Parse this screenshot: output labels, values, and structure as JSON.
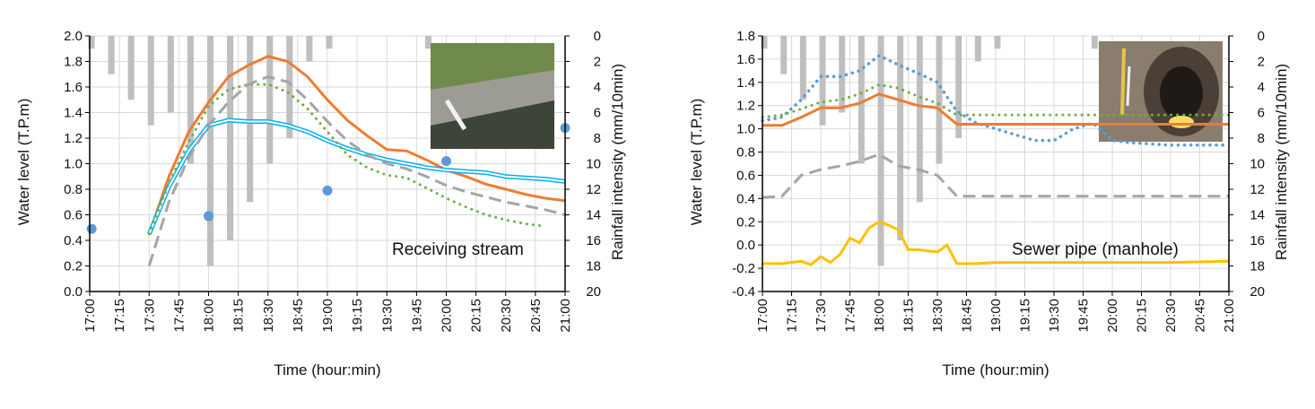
{
  "chart_data": [
    {
      "type": "line",
      "title": "",
      "annotation": "Receiving stream",
      "xlabel": "Time (hour:min)",
      "ylabel": "Water level (T.P.m)",
      "y2label": "Rainfall intensity (mm/10min)",
      "x_ticks": [
        "17:00",
        "17:15",
        "17:30",
        "17:45",
        "18:00",
        "18:15",
        "18:30",
        "18:45",
        "19:00",
        "19:15",
        "19:30",
        "19:45",
        "20:00",
        "20:15",
        "20:30",
        "20:45",
        "21:00"
      ],
      "ylim": [
        0.0,
        2.0
      ],
      "y_ticks": [
        "0.0",
        "0.2",
        "0.4",
        "0.6",
        "0.8",
        "1.0",
        "1.2",
        "1.4",
        "1.6",
        "1.8",
        "2.0"
      ],
      "y2lim": [
        0,
        20
      ],
      "y2_reversed": true,
      "y2_ticks": [
        "0",
        "2",
        "4",
        "6",
        "8",
        "10",
        "12",
        "14",
        "16",
        "18",
        "20"
      ],
      "grid": true,
      "rainfall": {
        "x": [
          "17:00",
          "17:10",
          "17:20",
          "17:30",
          "17:40",
          "17:50",
          "18:00",
          "18:10",
          "18:20",
          "18:30",
          "18:40",
          "18:50",
          "19:00",
          "19:10",
          "19:20",
          "19:30",
          "19:40",
          "19:50",
          "20:00",
          "20:10",
          "20:20",
          "20:30",
          "20:40",
          "20:50",
          "21:00"
        ],
        "values": [
          1,
          3,
          5,
          7,
          6,
          10,
          18,
          16,
          13,
          10,
          8,
          2,
          1,
          0,
          0,
          0,
          0,
          1,
          0,
          0,
          0,
          0,
          0,
          0,
          0
        ]
      },
      "series": [
        {
          "style": "solid",
          "color": "#ED7D31",
          "x": [
            "17:30",
            "17:40",
            "17:50",
            "18:00",
            "18:10",
            "18:20",
            "18:30",
            "18:40",
            "18:50",
            "19:00",
            "19:10",
            "19:20",
            "19:30",
            "19:40",
            "19:50",
            "20:00",
            "20:10",
            "20:20",
            "20:30",
            "20:40",
            "20:50",
            "21:00"
          ],
          "values": [
            0.45,
            0.9,
            1.25,
            1.48,
            1.68,
            1.77,
            1.84,
            1.8,
            1.68,
            1.5,
            1.34,
            1.22,
            1.11,
            1.1,
            1.03,
            0.95,
            0.9,
            0.84,
            0.8,
            0.76,
            0.73,
            0.71
          ]
        },
        {
          "style": "double",
          "color": "#00B0F0",
          "x": [
            "17:30",
            "17:40",
            "17:50",
            "18:00",
            "18:10",
            "18:20",
            "18:30",
            "18:40",
            "18:50",
            "19:00",
            "19:10",
            "19:20",
            "19:30",
            "19:40",
            "19:50",
            "20:00",
            "20:10",
            "20:20",
            "20:30",
            "20:40",
            "20:50",
            "21:00"
          ],
          "values": [
            0.45,
            0.82,
            1.1,
            1.3,
            1.34,
            1.33,
            1.33,
            1.3,
            1.25,
            1.18,
            1.12,
            1.07,
            1.03,
            1.0,
            0.97,
            0.95,
            0.94,
            0.93,
            0.9,
            0.89,
            0.88,
            0.86
          ]
        },
        {
          "style": "dotted",
          "color": "#70AD47",
          "x": [
            "17:30",
            "17:40",
            "17:50",
            "18:00",
            "18:10",
            "18:20",
            "18:30",
            "18:40",
            "18:50",
            "19:00",
            "19:10",
            "19:20",
            "19:30",
            "19:40",
            "19:50",
            "20:00",
            "20:10",
            "20:20",
            "20:30",
            "20:40",
            "20:50"
          ],
          "values": [
            0.45,
            0.85,
            1.17,
            1.45,
            1.58,
            1.62,
            1.62,
            1.56,
            1.43,
            1.25,
            1.07,
            0.97,
            0.91,
            0.89,
            0.81,
            0.73,
            0.66,
            0.6,
            0.56,
            0.53,
            0.51
          ]
        },
        {
          "style": "dashed",
          "color": "#A5A5A5",
          "x": [
            "17:30",
            "17:40",
            "17:50",
            "18:00",
            "18:10",
            "18:20",
            "18:30",
            "18:40",
            "18:50",
            "19:00",
            "19:10",
            "19:20",
            "19:30",
            "19:40",
            "19:50",
            "20:00",
            "20:10",
            "20:20",
            "20:30",
            "20:40",
            "20:50",
            "21:00"
          ],
          "values": [
            0.2,
            0.7,
            1.05,
            1.3,
            1.48,
            1.62,
            1.68,
            1.64,
            1.5,
            1.33,
            1.18,
            1.07,
            1.0,
            0.96,
            0.9,
            0.83,
            0.78,
            0.74,
            0.7,
            0.67,
            0.64,
            0.6
          ]
        },
        {
          "style": "markers",
          "color": "#5B9BD5",
          "x": [
            "17:01",
            "18:00",
            "19:00",
            "20:00",
            "21:00"
          ],
          "values": [
            0.49,
            0.59,
            0.79,
            1.02,
            1.28
          ]
        }
      ]
    },
    {
      "type": "line",
      "title": "",
      "annotation": "Sewer pipe (manhole)",
      "xlabel": "Time (hour:min)",
      "ylabel": "Water level (T.P.m)",
      "y2label": "Rainfall intensity (mm/10min)",
      "x_ticks": [
        "17:00",
        "17:15",
        "17:30",
        "17:45",
        "18:00",
        "18:15",
        "18:30",
        "18:45",
        "19:00",
        "19:15",
        "19:30",
        "19:45",
        "20:00",
        "20:15",
        "20:30",
        "20:45",
        "21:00"
      ],
      "ylim": [
        -0.4,
        1.8
      ],
      "y_ticks": [
        "-0.4",
        "-0.2",
        "0.0",
        "0.2",
        "0.4",
        "0.6",
        "0.8",
        "1.0",
        "1.2",
        "1.4",
        "1.6",
        "1.8"
      ],
      "y2lim": [
        0,
        20
      ],
      "y2_reversed": true,
      "y2_ticks": [
        "0",
        "2",
        "4",
        "6",
        "8",
        "10",
        "12",
        "14",
        "16",
        "18",
        "20"
      ],
      "grid": true,
      "rainfall": {
        "x": [
          "17:00",
          "17:10",
          "17:20",
          "17:30",
          "17:40",
          "17:50",
          "18:00",
          "18:10",
          "18:20",
          "18:30",
          "18:40",
          "18:50",
          "19:00",
          "19:10",
          "19:20",
          "19:30",
          "19:40",
          "19:50",
          "20:00",
          "20:10",
          "20:20",
          "20:30",
          "20:40",
          "20:50",
          "21:00"
        ],
        "values": [
          1,
          3,
          5,
          7,
          6,
          10,
          18,
          16,
          13,
          10,
          8,
          2,
          1,
          0,
          0,
          0,
          0,
          1,
          0,
          0,
          0,
          0,
          0,
          0,
          0
        ]
      },
      "series": [
        {
          "style": "dotted",
          "color": "#5B9BD5",
          "x": [
            "17:00",
            "17:10",
            "17:20",
            "17:30",
            "17:40",
            "17:50",
            "18:00",
            "18:10",
            "18:20",
            "18:30",
            "18:40",
            "18:50",
            "19:00",
            "19:10",
            "19:20",
            "19:30",
            "19:40",
            "19:50",
            "20:00",
            "20:10",
            "20:20",
            "20:30",
            "20:40",
            "20:50",
            "21:00"
          ],
          "values": [
            1.07,
            1.1,
            1.25,
            1.45,
            1.45,
            1.5,
            1.63,
            1.55,
            1.48,
            1.4,
            1.15,
            1.05,
            1.0,
            0.95,
            0.9,
            0.9,
            1.0,
            1.05,
            0.9,
            0.88,
            0.87,
            0.86,
            0.86,
            0.86,
            0.86
          ]
        },
        {
          "style": "solid",
          "color": "#ED7D31",
          "x": [
            "17:00",
            "17:10",
            "17:20",
            "17:30",
            "17:40",
            "17:50",
            "18:00",
            "18:10",
            "18:20",
            "18:30",
            "18:40",
            "18:50",
            "19:00",
            "19:10",
            "19:20",
            "19:30",
            "19:40",
            "19:50",
            "20:00",
            "20:10",
            "20:20",
            "20:30",
            "20:40",
            "20:50",
            "21:00"
          ],
          "values": [
            1.03,
            1.03,
            1.1,
            1.18,
            1.18,
            1.22,
            1.3,
            1.25,
            1.2,
            1.18,
            1.04,
            1.04,
            1.04,
            1.04,
            1.04,
            1.04,
            1.04,
            1.04,
            1.04,
            1.04,
            1.04,
            1.04,
            1.04,
            1.04,
            1.04
          ]
        },
        {
          "style": "dotted",
          "color": "#70AD47",
          "x": [
            "17:00",
            "17:10",
            "17:20",
            "17:30",
            "17:40",
            "17:50",
            "18:00",
            "18:10",
            "18:20",
            "18:30",
            "18:40",
            "18:50",
            "19:00",
            "19:10",
            "19:20",
            "19:30",
            "19:40",
            "19:50",
            "20:00",
            "20:10",
            "20:20",
            "20:30",
            "20:40",
            "20:50",
            "21:00"
          ],
          "values": [
            1.1,
            1.12,
            1.17,
            1.23,
            1.25,
            1.3,
            1.38,
            1.35,
            1.28,
            1.22,
            1.12,
            1.12,
            1.12,
            1.12,
            1.12,
            1.12,
            1.12,
            1.12,
            1.12,
            1.12,
            1.12,
            1.12,
            1.12,
            1.12,
            1.12
          ]
        },
        {
          "style": "dashed",
          "color": "#A5A5A5",
          "x": [
            "17:00",
            "17:10",
            "17:20",
            "17:30",
            "17:40",
            "17:50",
            "18:00",
            "18:10",
            "18:20",
            "18:30",
            "18:40",
            "18:50",
            "19:00",
            "19:10",
            "19:20",
            "19:30",
            "19:40",
            "19:50",
            "20:00",
            "20:10",
            "20:20",
            "20:30",
            "20:40",
            "20:50",
            "21:00"
          ],
          "values": [
            0.41,
            0.42,
            0.6,
            0.65,
            0.68,
            0.72,
            0.78,
            0.68,
            0.65,
            0.6,
            0.42,
            0.42,
            0.42,
            0.42,
            0.42,
            0.42,
            0.42,
            0.42,
            0.42,
            0.42,
            0.42,
            0.42,
            0.42,
            0.42,
            0.42
          ]
        },
        {
          "style": "solid",
          "color": "#FFC000",
          "x": [
            "17:00",
            "17:05",
            "17:10",
            "17:15",
            "17:20",
            "17:25",
            "17:30",
            "17:35",
            "17:40",
            "17:45",
            "17:50",
            "17:55",
            "18:00",
            "18:05",
            "18:10",
            "18:15",
            "18:20",
            "18:25",
            "18:30",
            "18:35",
            "18:40",
            "18:50",
            "19:00",
            "19:30",
            "20:00",
            "20:30",
            "21:00"
          ],
          "values": [
            -0.16,
            -0.16,
            -0.16,
            -0.15,
            -0.14,
            -0.17,
            -0.1,
            -0.15,
            -0.08,
            0.06,
            0.02,
            0.15,
            0.2,
            0.17,
            0.13,
            -0.04,
            -0.04,
            -0.05,
            -0.06,
            0.0,
            -0.16,
            -0.16,
            -0.15,
            -0.15,
            -0.15,
            -0.15,
            -0.14
          ]
        }
      ]
    }
  ]
}
